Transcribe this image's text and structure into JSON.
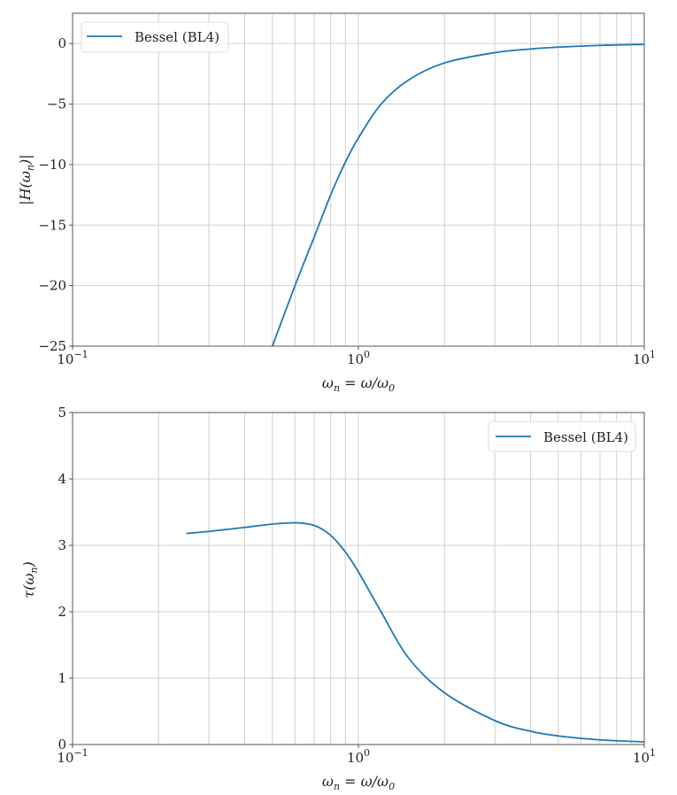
{
  "chart_data": [
    {
      "type": "line",
      "title": "",
      "xlabel": "ω_n = ω/ω_0",
      "ylabel": "|H(ω_n)|",
      "xscale": "log",
      "xlim": [
        0.1,
        10
      ],
      "ylim": [
        -25,
        2.5
      ],
      "grid": true,
      "legend_position": "upper left",
      "xticks": [
        "10^-1",
        "10^0",
        "10^1"
      ],
      "yticks": [
        "0",
        "-5",
        "-10",
        "-15",
        "-20",
        "-25"
      ],
      "series": [
        {
          "name": "Bessel (BL4)",
          "color": "#1f77b4",
          "x": [
            0.5,
            0.6,
            0.7,
            0.8,
            0.9,
            1.0,
            1.2,
            1.5,
            2.0,
            3.0,
            4.0,
            5.0,
            7.0,
            10.0
          ],
          "y": [
            -25.0,
            -20.0,
            -16.0,
            -12.5,
            -9.8,
            -7.8,
            -5.0,
            -3.0,
            -1.6,
            -0.75,
            -0.45,
            -0.3,
            -0.15,
            -0.07
          ]
        }
      ]
    },
    {
      "type": "line",
      "title": "",
      "xlabel": "ω_n = ω/ω_0",
      "ylabel": "τ(ω_n)",
      "xscale": "log",
      "xlim": [
        0.1,
        10
      ],
      "ylim": [
        0,
        5
      ],
      "grid": true,
      "legend_position": "upper right",
      "xticks": [
        "10^-1",
        "10^0",
        "10^1"
      ],
      "yticks": [
        "0",
        "1",
        "2",
        "3",
        "4",
        "5"
      ],
      "series": [
        {
          "name": "Bessel (BL4)",
          "color": "#1f77b4",
          "x": [
            0.25,
            0.3,
            0.4,
            0.5,
            0.6,
            0.7,
            0.8,
            0.9,
            1.0,
            1.2,
            1.5,
            2.0,
            3.0,
            4.0,
            5.0,
            7.0,
            10.0
          ],
          "y": [
            3.18,
            3.21,
            3.27,
            3.32,
            3.34,
            3.3,
            3.15,
            2.9,
            2.6,
            2.0,
            1.3,
            0.78,
            0.36,
            0.2,
            0.13,
            0.07,
            0.04
          ]
        }
      ]
    }
  ],
  "plots": [
    {
      "legend": "Bessel (BL4)",
      "ylabel": "|H(ωn)|",
      "xlabel": "ωn = ω/ω0",
      "yticks": [
        "0",
        "−5",
        "−10",
        "−15",
        "−20",
        "−25"
      ],
      "xticks": [
        "10−1",
        "100",
        "101"
      ]
    },
    {
      "legend": "Bessel (BL4)",
      "ylabel": "τ(ωn)",
      "xlabel": "ωn = ω/ω0",
      "yticks": [
        "5",
        "4",
        "3",
        "2",
        "1",
        "0"
      ],
      "xticks": [
        "10−1",
        "100",
        "101"
      ]
    }
  ]
}
